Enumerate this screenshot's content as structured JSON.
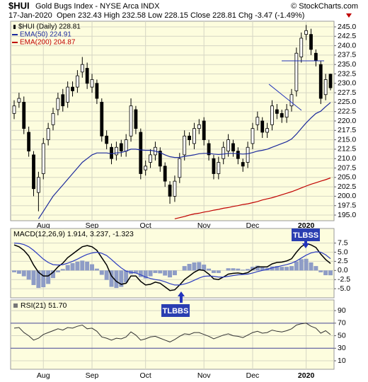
{
  "chart_data": [
    {
      "type": "candlestick",
      "title": "$HUI",
      "subtitle": "Gold Bugs Index - NYSE Arca INDX",
      "source": "© StockCharts.com",
      "date": "17-Jan-2020",
      "quote": "Open 232.43  High 232.58  Low 228.15  Close 228.81  Chg -3.47 (-1.49%)",
      "name": "$HUI (Daily) 228.81",
      "categories": [
        null,
        null,
        null,
        null,
        null,
        null,
        "Aug",
        null,
        null,
        null,
        null,
        null,
        null,
        null,
        null,
        null,
        "Sep",
        null,
        null,
        null,
        null,
        null,
        null,
        null,
        null,
        null,
        null,
        "Oct",
        null,
        null,
        null,
        null,
        null,
        null,
        null,
        null,
        null,
        null,
        null,
        "Nov",
        null,
        null,
        null,
        null,
        null,
        null,
        null,
        null,
        null,
        "Dec",
        null,
        null,
        null,
        null,
        null,
        null,
        null,
        null,
        null,
        null,
        "2020",
        null,
        null,
        null,
        null,
        null
      ],
      "open": [
        222,
        225,
        225,
        217,
        211,
        201,
        206,
        215,
        219,
        223,
        227,
        225,
        229,
        229,
        233,
        234,
        229,
        230,
        225,
        216,
        213,
        211,
        214,
        212,
        216,
        223,
        217,
        207,
        209,
        211,
        212,
        208,
        203,
        200,
        205,
        211,
        216,
        214,
        218,
        220,
        214,
        210,
        206,
        210,
        212,
        214,
        212,
        209,
        209,
        214,
        219,
        220,
        217,
        219,
        223,
        222,
        221,
        224,
        228,
        237,
        243,
        243,
        238,
        235,
        227,
        232.43
      ],
      "high": [
        225.5,
        227.5,
        226.5,
        218.5,
        212,
        206.5,
        215.5,
        219.5,
        223.5,
        227.5,
        228.5,
        230.5,
        230.5,
        233.5,
        237,
        235.5,
        232.5,
        231,
        226,
        217.5,
        214,
        214.5,
        215,
        216.5,
        226,
        224,
        218,
        209.5,
        212.5,
        214.5,
        213,
        209,
        204,
        205.5,
        211.5,
        217.5,
        217,
        219.5,
        220.5,
        221,
        215,
        211,
        210.5,
        214.5,
        216.5,
        215,
        213,
        210,
        214.5,
        219.5,
        222.5,
        221,
        219.5,
        225.5,
        224.5,
        223,
        224.5,
        228.5,
        239.5,
        243.5,
        245.5,
        244.5,
        239,
        236,
        232.5,
        232.58
      ],
      "low": [
        220.5,
        223.5,
        216.5,
        210.5,
        200,
        196,
        204.5,
        213.5,
        217.5,
        221.5,
        222.5,
        223.5,
        226.5,
        227.5,
        231.5,
        228.5,
        227.5,
        224.5,
        214.5,
        212.5,
        208.5,
        209.5,
        210.5,
        210.5,
        214.5,
        216.5,
        204.5,
        205.5,
        207.5,
        209.5,
        206.5,
        202.5,
        198,
        198.5,
        203.5,
        209.5,
        213.5,
        212.5,
        216.5,
        213.5,
        209.5,
        204.5,
        204.5,
        208.5,
        210.5,
        210.5,
        208.5,
        206.5,
        207.5,
        212.5,
        217.5,
        215.5,
        215.5,
        217.5,
        220.5,
        219.5,
        219.5,
        222.5,
        226.5,
        235.5,
        241.5,
        237.5,
        234.5,
        224.5,
        225.5,
        228.15
      ],
      "close": [
        224,
        226,
        218,
        212,
        202,
        205,
        214,
        218,
        222,
        226,
        224,
        229,
        228,
        232,
        235,
        230,
        231,
        226,
        216,
        214,
        210,
        213,
        212,
        215,
        224,
        218,
        206,
        208,
        211,
        213,
        208,
        204,
        200,
        204,
        210,
        216,
        215,
        218,
        219,
        215,
        211,
        206,
        209,
        213,
        215,
        212,
        210,
        208,
        213,
        218,
        221,
        217,
        218,
        224,
        222,
        221,
        223,
        227,
        238,
        242,
        244,
        239,
        236,
        226,
        231,
        228.81
      ],
      "series": [
        {
          "name": "EMA(50) 224.91",
          "color": "#1c2a9c",
          "values": [
            null,
            null,
            null,
            null,
            null,
            194,
            196,
            198,
            200,
            201.5,
            203,
            204.5,
            206,
            207.5,
            209,
            210,
            211,
            211.5,
            211.5,
            211.5,
            211.3,
            211.5,
            211.6,
            212,
            212.5,
            212.5,
            212.3,
            212.2,
            212.2,
            212,
            211.6,
            211,
            210.5,
            210.3,
            210.3,
            210.6,
            210.8,
            211,
            211.3,
            211.4,
            211.4,
            211.2,
            211.1,
            211.2,
            211.4,
            211.4,
            211.3,
            211.2,
            211.3,
            211.6,
            212,
            212.2,
            212.5,
            213,
            213.5,
            214,
            214.5,
            215.2,
            216.5,
            218,
            219.5,
            220.8,
            222,
            222.6,
            223.8,
            224.91
          ]
        },
        {
          "name": "EMA(200) 204.87",
          "color": "#c00000",
          "values": [
            null,
            null,
            null,
            null,
            null,
            null,
            null,
            null,
            null,
            null,
            null,
            null,
            null,
            null,
            null,
            null,
            null,
            null,
            null,
            null,
            null,
            null,
            null,
            null,
            null,
            null,
            null,
            null,
            null,
            null,
            null,
            null,
            null,
            194.0,
            194.3,
            194.6,
            195.0,
            195.3,
            195.5,
            195.8,
            196.0,
            196.3,
            196.5,
            196.8,
            197.0,
            197.3,
            197.5,
            197.8,
            198.0,
            198.3,
            198.6,
            199.0,
            199.3,
            199.6,
            200.0,
            200.4,
            200.8,
            201.2,
            201.7,
            202.2,
            202.7,
            203.2,
            203.6,
            204.0,
            204.4,
            204.87
          ]
        }
      ],
      "ylim": [
        193.5,
        246.5
      ],
      "yticks": [
        {
          "value": 195,
          "label": "195.0"
        },
        197.5,
        {
          "value": 200,
          "label": "200.0"
        },
        202.5,
        {
          "value": 205,
          "label": "205.0"
        },
        207.5,
        {
          "value": 210,
          "label": "210.0"
        },
        212.5,
        {
          "value": 215,
          "label": "215.0"
        },
        217.5,
        {
          "value": 220,
          "label": "220.0"
        },
        222.5,
        {
          "value": 225,
          "label": "225.0"
        },
        227.5,
        {
          "value": 230,
          "label": "230.0"
        },
        232.5,
        {
          "value": 235,
          "label": "235.0"
        },
        237.5,
        {
          "value": 240,
          "label": "240.0"
        },
        242.5,
        {
          "value": 245,
          "label": "245.0"
        }
      ],
      "grid": true
    },
    {
      "type": "macd",
      "legend": "MACD(12,26,9) 1.914, 3.237, -1.323",
      "annotations": [
        "TLBBS",
        "TLBSS"
      ],
      "series": [
        {
          "color": "#000000",
          "values": [
            7.0,
            6.5,
            5.5,
            4.0,
            1.5,
            -0.5,
            -1.5,
            -1.5,
            -0.5,
            1.0,
            2.0,
            3.5,
            4.5,
            5.5,
            6.5,
            6.8,
            6.5,
            5.5,
            3.5,
            1.5,
            -1.5,
            -3.0,
            -3.8,
            -3.5,
            -1.5,
            -1.5,
            -3.0,
            -4.0,
            -3.8,
            -3.2,
            -3.5,
            -4.5,
            -5.5,
            -5.3,
            -4.0,
            -2.5,
            -1.5,
            -0.5,
            0.2,
            0.0,
            -1.0,
            -2.3,
            -2.5,
            -1.8,
            -1.0,
            -0.8,
            -0.7,
            -0.9,
            -0.6,
            0.3,
            1.0,
            1.0,
            1.0,
            1.8,
            2.2,
            2.3,
            2.6,
            3.2,
            5.0,
            6.5,
            7.4,
            7.0,
            6.3,
            4.5,
            3.0,
            1.914
          ]
        },
        {
          "color": "#2c3cc0",
          "values": [
            7.5,
            7.4,
            7.1,
            6.5,
            5.5,
            4.3,
            3.1,
            2.2,
            1.6,
            1.5,
            1.6,
            2.0,
            2.5,
            3.1,
            3.8,
            4.4,
            4.8,
            5.0,
            4.7,
            4.1,
            3.0,
            1.8,
            0.7,
            -0.2,
            -0.5,
            -0.7,
            -1.2,
            -1.8,
            -2.2,
            -2.5,
            -2.7,
            -3.1,
            -3.6,
            -4.0,
            -4.0,
            -3.7,
            -3.3,
            -2.7,
            -2.1,
            -1.6,
            -1.5,
            -1.6,
            -1.8,
            -1.8,
            -1.6,
            -1.4,
            -1.2,
            -1.1,
            -1.0,
            -0.7,
            -0.3,
            0.0,
            0.3,
            0.7,
            1.0,
            1.3,
            1.6,
            2.0,
            2.6,
            3.4,
            4.2,
            4.8,
            5.1,
            5.0,
            4.3,
            3.237
          ]
        },
        {
          "color": "#8e9cc6",
          "bars": true,
          "values": [
            -0.5,
            -0.9,
            -1.6,
            -2.5,
            -4.0,
            -4.8,
            -4.6,
            -3.7,
            -2.1,
            -0.5,
            0.4,
            1.5,
            2.0,
            2.4,
            2.7,
            2.4,
            1.7,
            0.5,
            -1.2,
            -2.6,
            -4.5,
            -4.8,
            -4.5,
            -3.3,
            -1.0,
            -0.8,
            -1.8,
            -2.2,
            -1.6,
            -0.7,
            -0.8,
            -1.4,
            -1.9,
            -1.3,
            0.0,
            1.2,
            1.8,
            2.2,
            2.3,
            1.6,
            0.5,
            -0.7,
            -0.7,
            0.0,
            0.6,
            0.6,
            0.5,
            0.2,
            0.4,
            1.0,
            1.3,
            1.0,
            0.7,
            1.1,
            1.2,
            1.0,
            1.0,
            1.2,
            2.4,
            3.1,
            3.2,
            2.2,
            1.2,
            -0.5,
            -1.3,
            -1.323
          ]
        }
      ],
      "ylim": [
        -7.5,
        11.5
      ],
      "yticks": [
        7.5,
        {
          "value": 5,
          "label": "5.0"
        },
        2.5,
        {
          "value": 0,
          "label": "0.0"
        },
        -2.5,
        {
          "value": -5,
          "label": "-5.0"
        }
      ],
      "grid": true
    },
    {
      "type": "rsi",
      "legend": "RSI(21) 51.70",
      "categories": [
        null,
        null,
        null,
        null,
        null,
        null,
        "Aug",
        null,
        null,
        null,
        null,
        null,
        null,
        null,
        null,
        null,
        "Sep",
        null,
        null,
        null,
        null,
        null,
        null,
        null,
        null,
        null,
        null,
        "Oct",
        null,
        null,
        null,
        null,
        null,
        null,
        null,
        null,
        null,
        null,
        null,
        "Nov",
        null,
        null,
        null,
        null,
        null,
        null,
        null,
        null,
        null,
        "Dec",
        null,
        null,
        null,
        null,
        null,
        null,
        null,
        null,
        null,
        null,
        "2020",
        null,
        null,
        null,
        null,
        null
      ],
      "color": "#333333",
      "values": [
        62,
        63,
        55,
        50,
        43,
        46,
        52,
        55,
        58,
        61,
        59,
        63,
        62,
        65,
        67,
        61,
        62,
        57,
        48,
        46,
        43,
        46,
        45,
        48,
        56,
        51,
        43,
        45,
        48,
        49,
        46,
        43,
        40,
        44,
        49,
        53,
        52,
        55,
        55,
        52,
        49,
        45,
        48,
        51,
        53,
        50,
        49,
        47,
        51,
        55,
        57,
        54,
        55,
        59,
        57,
        56,
        58,
        61,
        67,
        69,
        70,
        65,
        62,
        54,
        58,
        51.7
      ],
      "levels": [
        70,
        30
      ],
      "ylim": [
        -3.5,
        107
      ],
      "yticks": [
        90,
        70,
        50,
        30,
        10
      ],
      "grid": true
    }
  ]
}
